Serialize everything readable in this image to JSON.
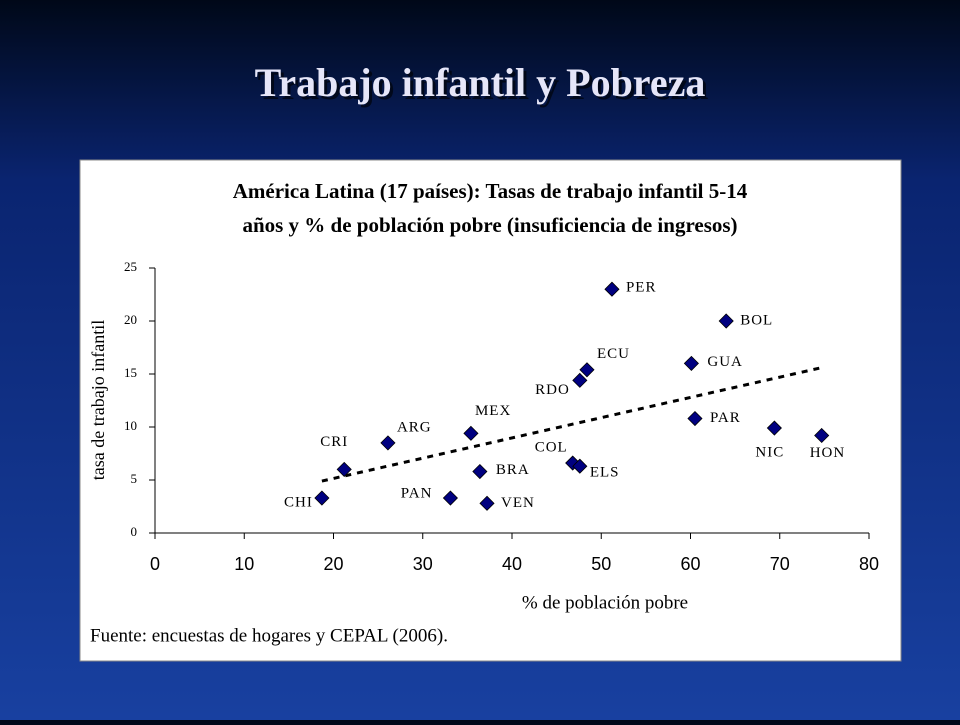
{
  "slide_title": "Trabajo infantil y Pobreza",
  "chart_data": {
    "type": "scatter",
    "title": [
      "América Latina (17 países): Tasas de trabajo infantil 5-14",
      "años y % de población pobre (insuficiencia de ingresos)"
    ],
    "x_label": "% de población pobre",
    "y_label": "tasa de trabajo infantil",
    "note": "Fuente: encuestas de hogares y CEPAL (2006).",
    "labels": [
      "CHI",
      "CRI",
      "ARG",
      "MEX",
      "BRA",
      "PAN",
      "VEN",
      "RDO",
      "ECU",
      "PER",
      "COL",
      "ELS",
      "GUA",
      "BOL",
      "PAR",
      "NIC",
      "HON"
    ],
    "x": [
      18.7,
      21.2,
      26.1,
      35.4,
      36.4,
      33.1,
      37.2,
      47.6,
      48.4,
      51.2,
      46.8,
      47.6,
      60.1,
      64.0,
      60.5,
      69.4,
      74.7
    ],
    "y": [
      3.3,
      6.0,
      8.5,
      9.4,
      5.8,
      3.3,
      2.8,
      14.4,
      15.4,
      23.0,
      6.6,
      6.3,
      16.0,
      20.0,
      10.8,
      9.9,
      9.2
    ],
    "color": "#000080",
    "trendline": {
      "x": [
        18.7,
        74.7
      ],
      "y": [
        4.9,
        15.6
      ]
    },
    "xlim": [
      0,
      80
    ],
    "ylim": [
      0,
      25
    ],
    "xticks": [
      0,
      10,
      20,
      30,
      40,
      50,
      60,
      70,
      80
    ],
    "yticks": [
      0,
      5,
      10,
      15,
      20,
      25
    ]
  }
}
